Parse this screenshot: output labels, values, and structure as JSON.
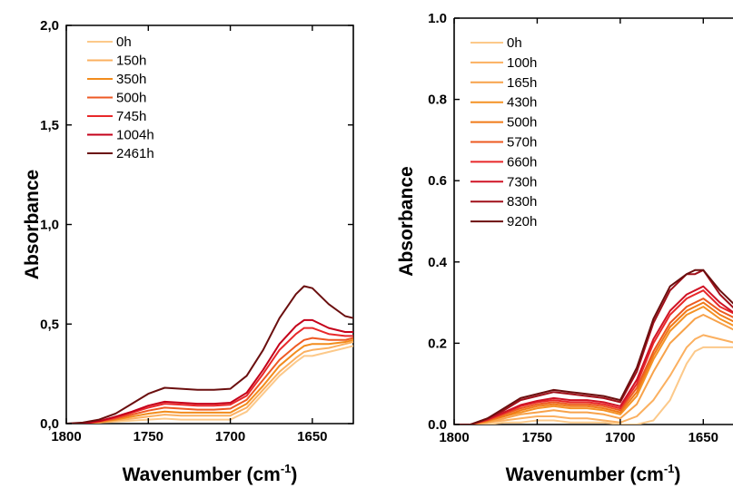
{
  "chart_data": [
    {
      "type": "line",
      "xlabel": "Wavenumber (cm",
      "xlabel_superscript": "-1",
      "xlabel_close": ")",
      "ylabel": "Absorbance",
      "xlim": [
        1800,
        1625
      ],
      "ylim": [
        0,
        2
      ],
      "x_ticks": [
        1800,
        1750,
        1700,
        1650
      ],
      "x_tick_labels": [
        "1800",
        "1750",
        "1700",
        "1650"
      ],
      "y_ticks": [
        0,
        0.5,
        1,
        1.5,
        2
      ],
      "y_tick_labels": [
        "0,0",
        "0,5",
        "1,0",
        "1,5",
        "2,0"
      ],
      "grid": false,
      "legend_position": "top-left",
      "x": [
        1800,
        1790,
        1780,
        1770,
        1760,
        1750,
        1740,
        1730,
        1720,
        1710,
        1700,
        1690,
        1680,
        1670,
        1660,
        1655,
        1650,
        1640,
        1630,
        1625
      ],
      "series": [
        {
          "name": "0h",
          "color": "#fcc98a",
          "values": [
            0,
            0,
            0.005,
            0.01,
            0.015,
            0.02,
            0.025,
            0.02,
            0.02,
            0.02,
            0.02,
            0.06,
            0.15,
            0.24,
            0.31,
            0.34,
            0.34,
            0.36,
            0.38,
            0.39
          ]
        },
        {
          "name": "150h",
          "color": "#fbb060",
          "values": [
            0,
            0,
            0.005,
            0.015,
            0.025,
            0.035,
            0.045,
            0.04,
            0.04,
            0.04,
            0.04,
            0.08,
            0.17,
            0.26,
            0.33,
            0.36,
            0.37,
            0.38,
            0.4,
            0.41
          ]
        },
        {
          "name": "350h",
          "color": "#f28c1c",
          "values": [
            0,
            0,
            0.008,
            0.02,
            0.035,
            0.05,
            0.06,
            0.055,
            0.055,
            0.055,
            0.055,
            0.1,
            0.19,
            0.29,
            0.36,
            0.39,
            0.4,
            0.4,
            0.41,
            0.42
          ]
        },
        {
          "name": "500h",
          "color": "#ee5a24",
          "values": [
            0,
            0,
            0.01,
            0.025,
            0.045,
            0.065,
            0.08,
            0.075,
            0.07,
            0.07,
            0.075,
            0.12,
            0.22,
            0.32,
            0.39,
            0.42,
            0.43,
            0.42,
            0.42,
            0.43
          ]
        },
        {
          "name": "745h",
          "color": "#e8282a",
          "values": [
            0,
            0,
            0.012,
            0.03,
            0.055,
            0.08,
            0.1,
            0.095,
            0.09,
            0.09,
            0.095,
            0.14,
            0.25,
            0.37,
            0.45,
            0.48,
            0.48,
            0.45,
            0.44,
            0.44
          ]
        },
        {
          "name": "1004h",
          "color": "#c4001a",
          "values": [
            0,
            0,
            0.012,
            0.035,
            0.06,
            0.09,
            0.11,
            0.105,
            0.1,
            0.1,
            0.105,
            0.155,
            0.27,
            0.4,
            0.49,
            0.52,
            0.52,
            0.48,
            0.46,
            0.46
          ]
        },
        {
          "name": "2461h",
          "color": "#6b0f0f",
          "values": [
            0,
            0.005,
            0.02,
            0.05,
            0.1,
            0.15,
            0.18,
            0.175,
            0.17,
            0.17,
            0.175,
            0.24,
            0.37,
            0.53,
            0.65,
            0.69,
            0.68,
            0.6,
            0.54,
            0.53
          ]
        }
      ]
    },
    {
      "type": "line",
      "xlabel": "Wavenumber (cm",
      "xlabel_superscript": "-1",
      "xlabel_close": ")",
      "ylabel": "Absorbance",
      "xlim": [
        1800,
        1625
      ],
      "ylim": [
        0,
        1
      ],
      "x_ticks": [
        1800,
        1750,
        1700,
        1650
      ],
      "x_tick_labels": [
        "1800",
        "1750",
        "1700",
        "1650"
      ],
      "y_ticks": [
        0,
        0.2,
        0.4,
        0.6,
        0.8,
        1
      ],
      "y_tick_labels": [
        "0.0",
        "0.2",
        "0.4",
        "0.6",
        "0.8",
        "1.0"
      ],
      "grid": false,
      "legend_position": "top-left",
      "x": [
        1800,
        1790,
        1780,
        1770,
        1760,
        1750,
        1740,
        1730,
        1720,
        1710,
        1700,
        1690,
        1680,
        1670,
        1660,
        1655,
        1650,
        1640,
        1630,
        1625
      ],
      "series": [
        {
          "name": "0h",
          "color": "#fcc98a",
          "values": [
            0,
            0,
            0,
            0.005,
            0.005,
            0.01,
            0.01,
            0.005,
            0.005,
            0.005,
            0,
            0,
            0.01,
            0.06,
            0.15,
            0.18,
            0.19,
            0.19,
            0.19,
            0.2
          ]
        },
        {
          "name": "100h",
          "color": "#fbb060",
          "values": [
            0,
            0,
            0.005,
            0.01,
            0.015,
            0.02,
            0.02,
            0.015,
            0.015,
            0.01,
            0.005,
            0.02,
            0.06,
            0.12,
            0.19,
            0.21,
            0.22,
            0.21,
            0.2,
            0.2
          ]
        },
        {
          "name": "165h",
          "color": "#f7a24a",
          "values": [
            0,
            0,
            0.005,
            0.015,
            0.025,
            0.03,
            0.035,
            0.03,
            0.03,
            0.025,
            0.015,
            0.05,
            0.13,
            0.2,
            0.24,
            0.26,
            0.27,
            0.25,
            0.23,
            0.22
          ]
        },
        {
          "name": "430h",
          "color": "#f49225",
          "values": [
            0,
            0,
            0.008,
            0.02,
            0.03,
            0.04,
            0.045,
            0.04,
            0.04,
            0.035,
            0.025,
            0.07,
            0.16,
            0.23,
            0.27,
            0.28,
            0.29,
            0.26,
            0.24,
            0.23
          ]
        },
        {
          "name": "500h",
          "color": "#f07a18",
          "values": [
            0,
            0,
            0.01,
            0.02,
            0.035,
            0.045,
            0.05,
            0.045,
            0.045,
            0.04,
            0.03,
            0.08,
            0.17,
            0.24,
            0.28,
            0.29,
            0.3,
            0.27,
            0.25,
            0.24
          ]
        },
        {
          "name": "570h",
          "color": "#ec5a20",
          "values": [
            0,
            0,
            0.01,
            0.025,
            0.04,
            0.05,
            0.055,
            0.05,
            0.05,
            0.045,
            0.035,
            0.09,
            0.18,
            0.25,
            0.29,
            0.3,
            0.31,
            0.28,
            0.26,
            0.25
          ]
        },
        {
          "name": "660h",
          "color": "#e8282a",
          "values": [
            0,
            0,
            0.012,
            0.028,
            0.045,
            0.055,
            0.06,
            0.055,
            0.055,
            0.05,
            0.04,
            0.1,
            0.2,
            0.27,
            0.31,
            0.32,
            0.33,
            0.29,
            0.27,
            0.26
          ]
        },
        {
          "name": "730h",
          "color": "#d01426",
          "values": [
            0,
            0,
            0.012,
            0.03,
            0.048,
            0.058,
            0.065,
            0.06,
            0.06,
            0.055,
            0.045,
            0.11,
            0.21,
            0.28,
            0.32,
            0.33,
            0.34,
            0.3,
            0.27,
            0.26
          ]
        },
        {
          "name": "830h",
          "color": "#a0101a",
          "values": [
            0,
            0,
            0.015,
            0.035,
            0.06,
            0.07,
            0.08,
            0.075,
            0.07,
            0.065,
            0.055,
            0.13,
            0.25,
            0.33,
            0.37,
            0.37,
            0.38,
            0.32,
            0.28,
            0.27
          ]
        },
        {
          "name": "920h",
          "color": "#6b0f0f",
          "values": [
            0,
            0,
            0.015,
            0.04,
            0.065,
            0.075,
            0.085,
            0.08,
            0.075,
            0.07,
            0.06,
            0.14,
            0.26,
            0.34,
            0.37,
            0.38,
            0.38,
            0.33,
            0.29,
            0.28
          ]
        }
      ]
    }
  ]
}
